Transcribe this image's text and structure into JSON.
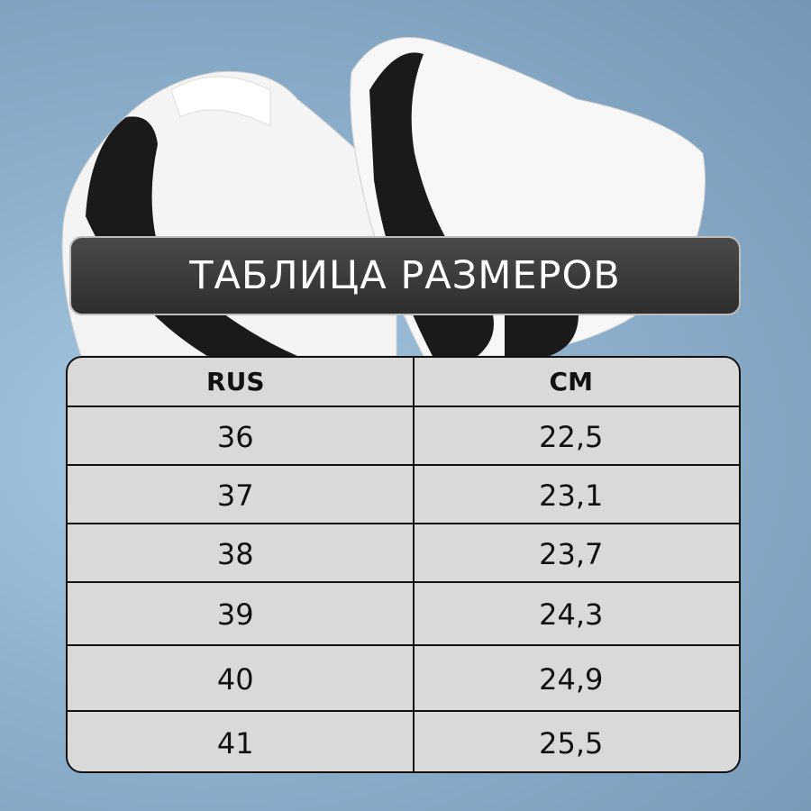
{
  "title": "ТАБЛИЦА РАЗМЕРОВ",
  "table": {
    "headers": [
      "RUS",
      "CM"
    ],
    "rows": [
      [
        "36",
        "22,5"
      ],
      [
        "37",
        "23,1"
      ],
      [
        "38",
        "23,7"
      ],
      [
        "39",
        "24,3"
      ],
      [
        "40",
        "24,9"
      ],
      [
        "41",
        "25,5"
      ]
    ]
  },
  "colors": {
    "background": "#8fb3cf",
    "title_bar": "#3a3a3a",
    "table": "#d9d9d9"
  }
}
